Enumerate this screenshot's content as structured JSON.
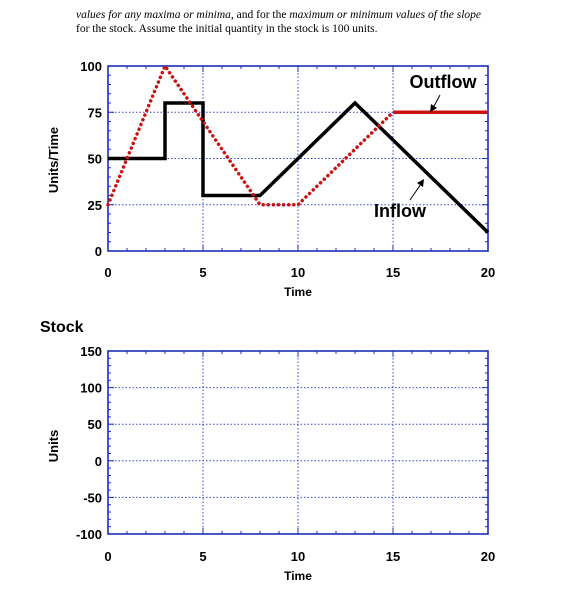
{
  "intro": {
    "line1_a": "values for any ",
    "line1_b": "maxima or minima",
    "line1_c": ", and for the ",
    "line1_d": "maximum or minimum values of the slope",
    "line2": "for the stock. Assume the initial quantity in the stock is 100 units."
  },
  "chart_data": [
    {
      "type": "line",
      "title": "",
      "xlabel": "Time",
      "ylabel": "Units/Time",
      "xlim": [
        0,
        20
      ],
      "ylim": [
        0,
        100
      ],
      "xticks": [
        "0",
        "5",
        "10",
        "15",
        "20"
      ],
      "yticks": [
        "0",
        "25",
        "50",
        "75",
        "100"
      ],
      "grid": true,
      "series": [
        {
          "name": "Inflow",
          "color": "#000000",
          "style": "solid",
          "points": [
            [
              0,
              50
            ],
            [
              3,
              50
            ],
            [
              3,
              80
            ],
            [
              5,
              80
            ],
            [
              5,
              30
            ],
            [
              8,
              30
            ],
            [
              13,
              80
            ],
            [
              20,
              10
            ]
          ]
        },
        {
          "name": "Outflow",
          "color": "#cc1111",
          "style": "dotted-then-solid",
          "points": [
            [
              0,
              25
            ],
            [
              3,
              100
            ],
            [
              8,
              25
            ],
            [
              10,
              25
            ],
            [
              15,
              75
            ],
            [
              20,
              75
            ]
          ]
        }
      ],
      "annotations": [
        "Outflow",
        "Inflow"
      ]
    },
    {
      "type": "line",
      "title": "Stock",
      "xlabel": "Time",
      "ylabel": "Units",
      "xlim": [
        0,
        20
      ],
      "ylim": [
        -100,
        150
      ],
      "xticks": [
        "0",
        "5",
        "10",
        "15",
        "20"
      ],
      "yticks": [
        "-100",
        "-50",
        "0",
        "50",
        "100",
        "150"
      ],
      "grid": true,
      "series": []
    }
  ]
}
